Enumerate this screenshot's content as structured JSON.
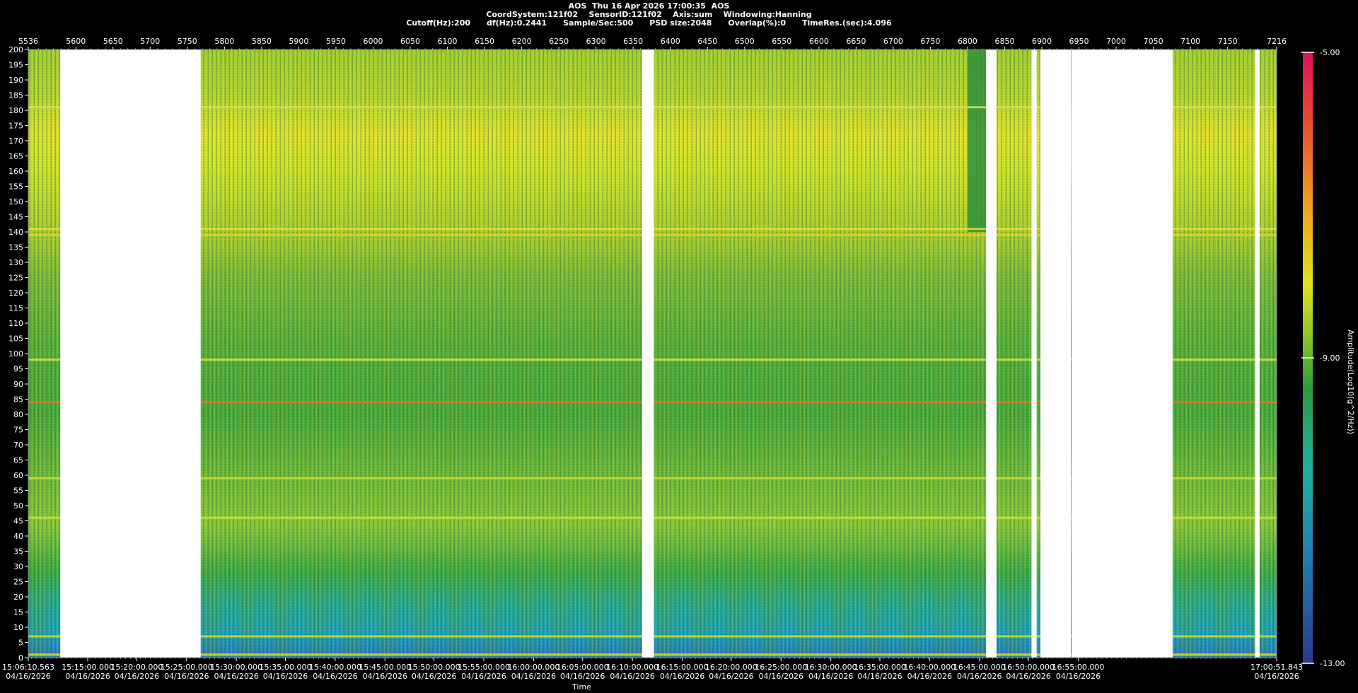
{
  "header": {
    "line1": "AOS  Thu 16 Apr 2026 17:00:35  AOS",
    "line2": "CoordSystem:121f02    SensorID:121f02    Axis:sum    Windowing:Hanning",
    "line3": "Cutoff(Hz):200      df(Hz):0.2441      Sample/Sec:500      PSD size:2048      Overlap(%):0      TimeRes.(sec):4.096"
  },
  "chart_data": {
    "type": "heatmap",
    "title": "AOS  Thu 16 Apr 2026 17:00:35  AOS",
    "xlabel": "Time",
    "ylabel": "",
    "colorbar_label": "Amplitude(Log10(g^2/Hz))",
    "colorbar_ticks": [
      "-5.00",
      "-9.00",
      "-13.00"
    ],
    "colorbar_range": [
      -13,
      -5
    ],
    "colors": {
      "low": "#1a3a8a",
      "mid_low": "#1fa0a0",
      "mid": "#2e9a3e",
      "mid_high": "#c8e02a",
      "high": "#f0c020",
      "top": "#e01050"
    },
    "ylim": [
      0,
      200
    ],
    "yticks": [
      0,
      5,
      10,
      15,
      20,
      25,
      30,
      35,
      40,
      45,
      50,
      55,
      60,
      65,
      70,
      75,
      80,
      85,
      90,
      95,
      100,
      105,
      110,
      115,
      120,
      125,
      130,
      135,
      140,
      145,
      150,
      155,
      160,
      165,
      170,
      175,
      180,
      185,
      190,
      195,
      200
    ],
    "xlim_top": [
      5536,
      7216
    ],
    "xticks_top": [
      5536,
      5600,
      5650,
      5700,
      5750,
      5800,
      5850,
      5900,
      5950,
      6000,
      6050,
      6100,
      6150,
      6200,
      6250,
      6300,
      6350,
      6400,
      6450,
      6500,
      6550,
      6600,
      6650,
      6700,
      6750,
      6800,
      6850,
      6900,
      6950,
      7000,
      7050,
      7100,
      7150,
      7216
    ],
    "time_ticks": [
      {
        "x": 5536,
        "time": "15:06:10.563",
        "date": "04/16/2026"
      },
      {
        "x": 5616,
        "time": "15:15:00.000",
        "date": "04/16/2026"
      },
      {
        "x": 5682,
        "time": "15:20:00.000",
        "date": "04/16/2026"
      },
      {
        "x": 5749,
        "time": "15:25:00.000",
        "date": "04/16/2026"
      },
      {
        "x": 5816,
        "time": "15:30:00.000",
        "date": "04/16/2026"
      },
      {
        "x": 5882,
        "time": "15:35:00.000",
        "date": "04/16/2026"
      },
      {
        "x": 5949,
        "time": "15:40:00.000",
        "date": "04/16/2026"
      },
      {
        "x": 6016,
        "time": "15:45:00.000",
        "date": "04/16/2026"
      },
      {
        "x": 6082,
        "time": "15:50:00.000",
        "date": "04/16/2026"
      },
      {
        "x": 6149,
        "time": "15:55:00.000",
        "date": "04/16/2026"
      },
      {
        "x": 6216,
        "time": "16:00:00.000",
        "date": "04/16/2026"
      },
      {
        "x": 6282,
        "time": "16:05:00.000",
        "date": "04/16/2026"
      },
      {
        "x": 6349,
        "time": "16:10:00.000",
        "date": "04/16/2026"
      },
      {
        "x": 6416,
        "time": "16:15:00.000",
        "date": "04/16/2026"
      },
      {
        "x": 6482,
        "time": "16:20:00.000",
        "date": "04/16/2026"
      },
      {
        "x": 6549,
        "time": "16:25:00.000",
        "date": "04/16/2026"
      },
      {
        "x": 6616,
        "time": "16:30:00.000",
        "date": "04/16/2026"
      },
      {
        "x": 6682,
        "time": "16:35:00.000",
        "date": "04/16/2026"
      },
      {
        "x": 6749,
        "time": "16:40:00.000",
        "date": "04/16/2026"
      },
      {
        "x": 6816,
        "time": "16:45:00.000",
        "date": "04/16/2026"
      },
      {
        "x": 6882,
        "time": "16:50:00.000",
        "date": "04/16/2026"
      },
      {
        "x": 6949,
        "time": "16:55:00.000",
        "date": "04/16/2026"
      },
      {
        "x": 7216,
        "time": "17:00:51.843",
        "date": "04/16/2026"
      }
    ],
    "data_gaps": [
      [
        5579,
        5768
      ],
      [
        6362,
        6378
      ],
      [
        6825,
        6839
      ],
      [
        6886,
        6893
      ],
      [
        6898,
        6939
      ],
      [
        6940,
        7076
      ],
      [
        7187,
        7193
      ]
    ],
    "dark_region": [
      6800,
      6825
    ],
    "bands": [
      {
        "hz": 1,
        "color": "#e0e020"
      },
      {
        "hz": 84,
        "color": "#e07a20"
      },
      {
        "hz": 98,
        "color": "#d8e040"
      },
      {
        "hz": 139,
        "color": "#f0d020"
      },
      {
        "hz": 141,
        "color": "#e0e040"
      },
      {
        "hz": 181,
        "color": "#d8e060"
      },
      {
        "hz": 59,
        "color": "#c8e040"
      },
      {
        "hz": 46,
        "color": "#c8e040"
      },
      {
        "hz": 7,
        "color": "#c8e040"
      }
    ]
  }
}
